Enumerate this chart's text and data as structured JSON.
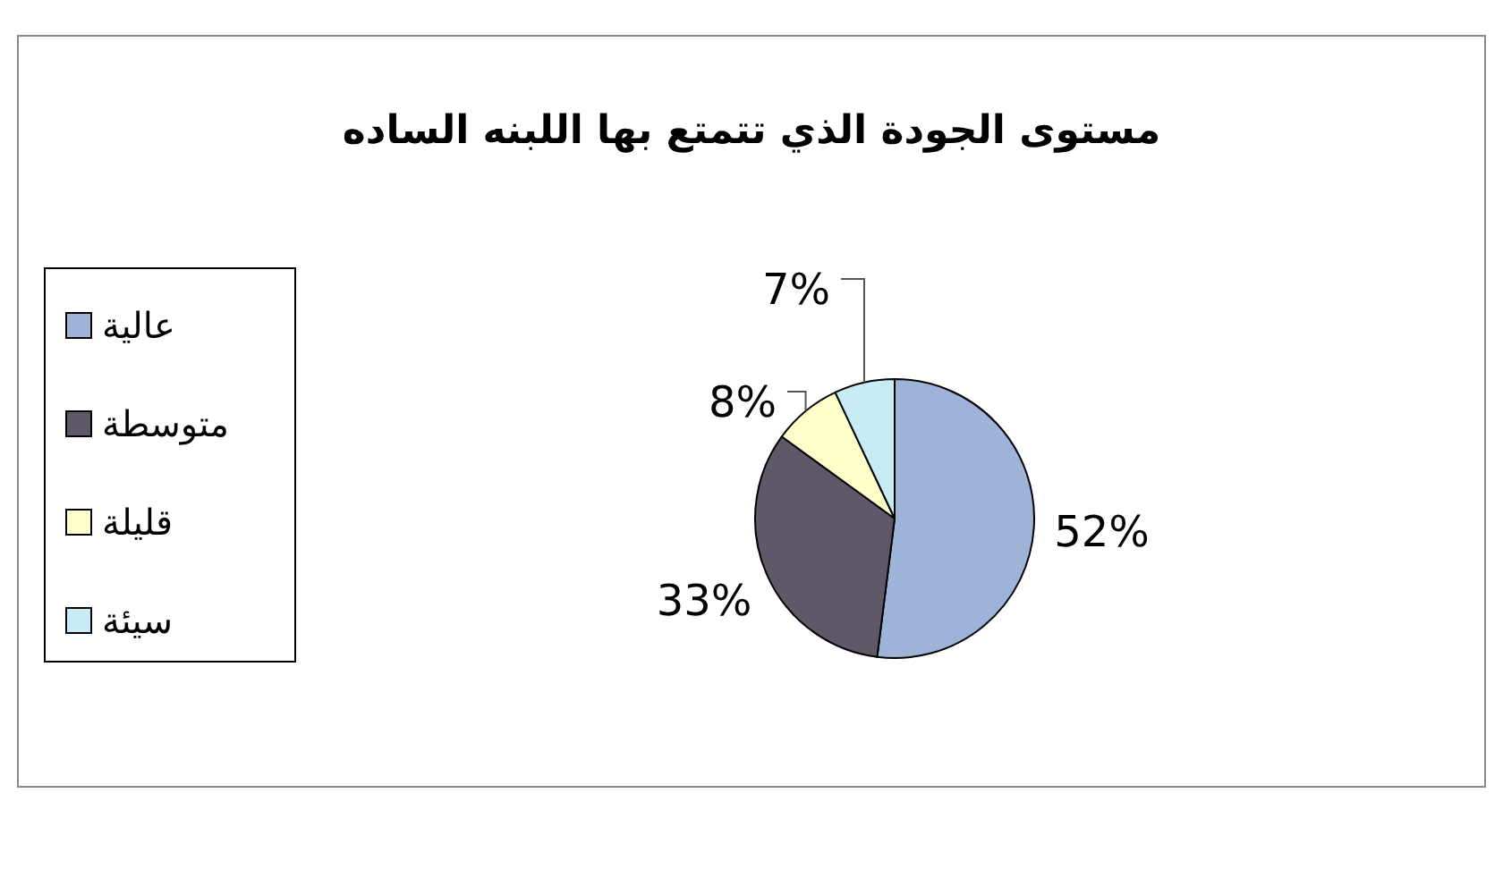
{
  "chart_data": {
    "type": "pie",
    "title": "مستوى الجودة الذي تتمتع بها اللبنه الساده",
    "categories": [
      "عالية",
      "متوسطة",
      "قليلة",
      "سيئة"
    ],
    "values": [
      52,
      33,
      8,
      7
    ],
    "colors": [
      "#9db4d8",
      "#5e5868",
      "#ffffcc",
      "#c8ecf6"
    ],
    "value_labels": [
      "52%",
      "33%",
      "8%",
      "7%"
    ],
    "legend": "left"
  }
}
